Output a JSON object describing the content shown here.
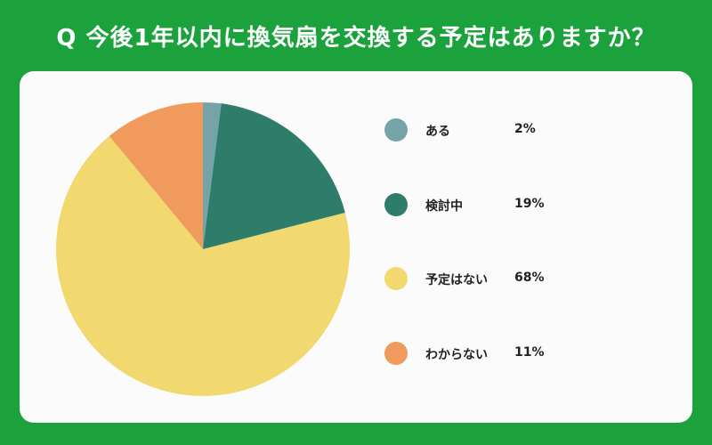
{
  "title": "Q 今後1年以内に換気扇を交換する予定はありますか？",
  "colors": {
    "background": "#1ba23c",
    "card": "#fbfbfb"
  },
  "chart_data": {
    "type": "pie",
    "title": "Q 今後1年以内に換気扇を交換する予定はありますか？",
    "legend_placement": "right",
    "slices": [
      {
        "label": "ある",
        "value": 2,
        "value_label": "2%",
        "color": "#76a3a8"
      },
      {
        "label": "検討中",
        "value": 19,
        "value_label": "19%",
        "color": "#2e7d6a"
      },
      {
        "label": "予定はない",
        "value": 68,
        "value_label": "68%",
        "color": "#f1d86f"
      },
      {
        "label": "わからない",
        "value": 11,
        "value_label": "11%",
        "color": "#f09a5d"
      }
    ]
  }
}
